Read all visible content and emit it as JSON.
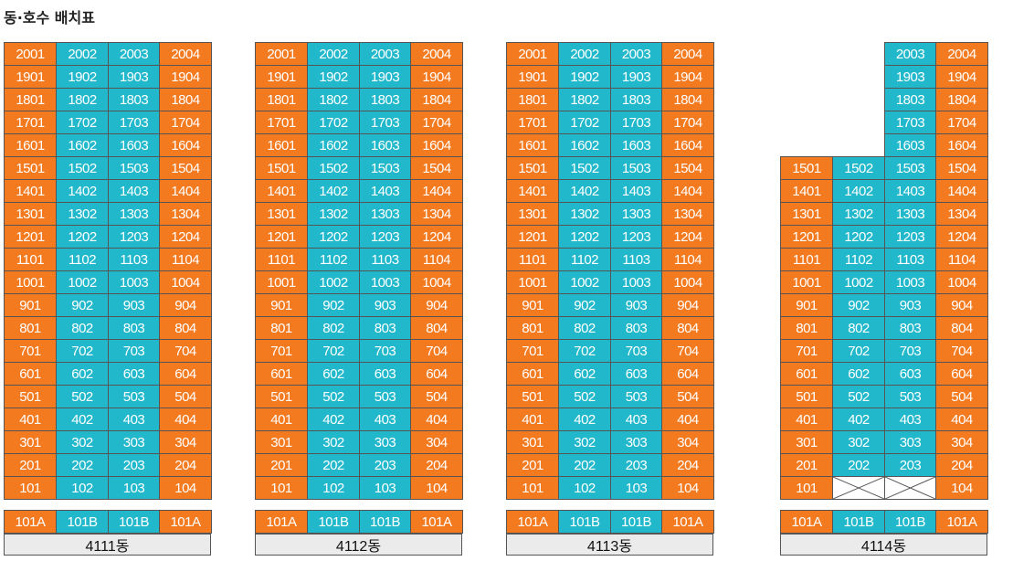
{
  "title": "동·호수 배치표",
  "colors": {
    "edge_unit": "#f47a20",
    "middle_unit": "#22b8cc",
    "name_bar": "#ebebeb"
  },
  "floors": [
    "20",
    "19",
    "18",
    "17",
    "16",
    "15",
    "14",
    "13",
    "12",
    "11",
    "10",
    "9",
    "8",
    "7",
    "6",
    "5",
    "4",
    "3",
    "2",
    "1"
  ],
  "buildings": [
    {
      "name": "4111동",
      "top_floor": 20,
      "upper_columns": [
        1,
        2,
        3,
        4
      ],
      "upper_from_floor": 16,
      "blocked_first_floor": [],
      "commercial": [
        "101A",
        "101B",
        "101B",
        "101A"
      ]
    },
    {
      "name": "4112동",
      "top_floor": 20,
      "upper_columns": [
        1,
        2,
        3,
        4
      ],
      "upper_from_floor": 16,
      "blocked_first_floor": [],
      "commercial": [
        "101A",
        "101B",
        "101B",
        "101A"
      ]
    },
    {
      "name": "4113동",
      "top_floor": 20,
      "upper_columns": [
        1,
        2,
        3,
        4
      ],
      "upper_from_floor": 16,
      "blocked_first_floor": [],
      "commercial": [
        "101A",
        "101B",
        "101B",
        "101A"
      ]
    },
    {
      "name": "4114동",
      "top_floor": 20,
      "upper_columns": [
        3,
        4
      ],
      "upper_from_floor": 16,
      "blocked_first_floor": [
        2,
        3
      ],
      "commercial": [
        "101A",
        "101B",
        "101B",
        "101A"
      ]
    }
  ]
}
